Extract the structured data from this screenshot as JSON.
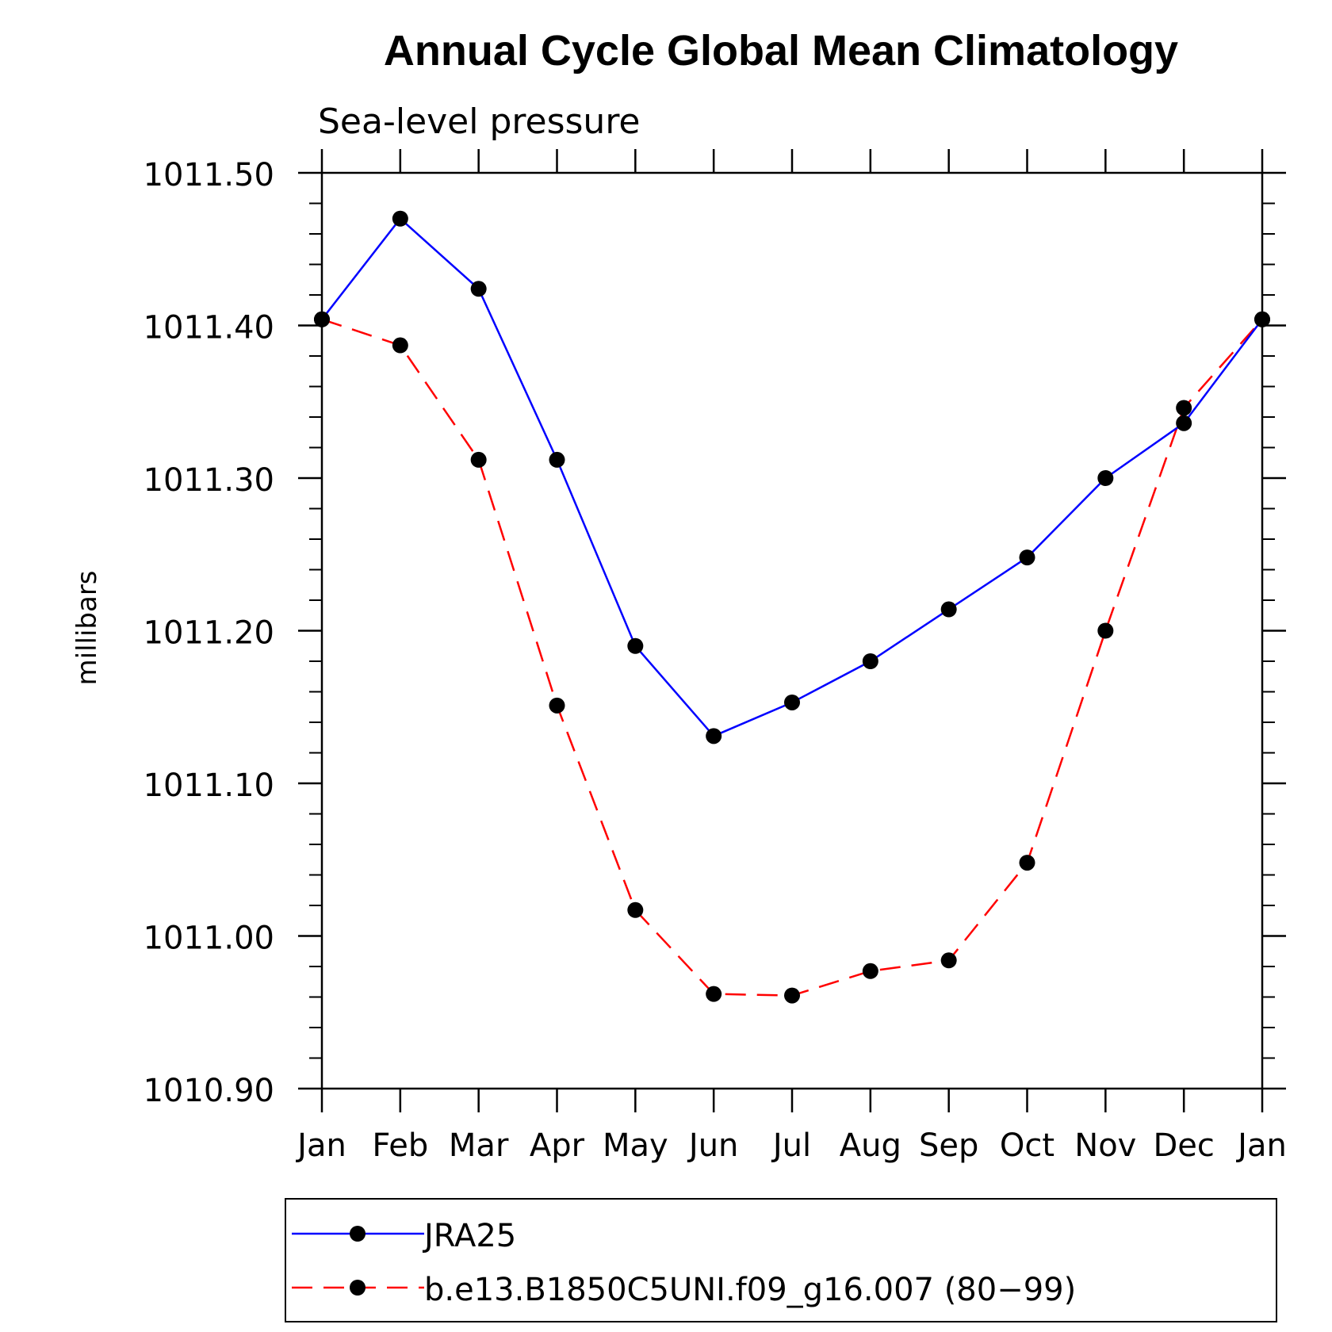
{
  "chart_data": {
    "type": "line",
    "title": "Annual Cycle Global Mean Climatology",
    "subtitle": "Sea-level pressure",
    "ylabel": "millibars",
    "xlabel": "",
    "categories": [
      "Jan",
      "Feb",
      "Mar",
      "Apr",
      "May",
      "Jun",
      "Jul",
      "Aug",
      "Sep",
      "Oct",
      "Nov",
      "Dec",
      "Jan"
    ],
    "ylim": [
      1010.9,
      1011.5
    ],
    "yticks": [
      1010.9,
      1011.0,
      1011.1,
      1011.2,
      1011.3,
      1011.4,
      1011.5
    ],
    "ytick_labels": [
      "1010.90",
      "1011.00",
      "1011.10",
      "1011.20",
      "1011.30",
      "1011.40",
      "1011.50"
    ],
    "grid": false,
    "legend_position": "bottom",
    "series": [
      {
        "name": "JRA25",
        "color": "#0000ff",
        "line_style": "solid",
        "marker": "filled-circle",
        "values": [
          1011.404,
          1011.47,
          1011.424,
          1011.312,
          1011.19,
          1011.131,
          1011.153,
          1011.18,
          1011.214,
          1011.248,
          1011.3,
          1011.336,
          1011.404
        ]
      },
      {
        "name": "b.e13.B1850C5UNI.f09_g16.007 (80−99)",
        "color": "#ff0000",
        "line_style": "dashed",
        "marker": "filled-circle",
        "values": [
          1011.404,
          1011.387,
          1011.312,
          1011.151,
          1011.017,
          1010.962,
          1010.961,
          1010.977,
          1010.984,
          1011.048,
          1011.2,
          1011.346,
          1011.404
        ]
      }
    ]
  }
}
